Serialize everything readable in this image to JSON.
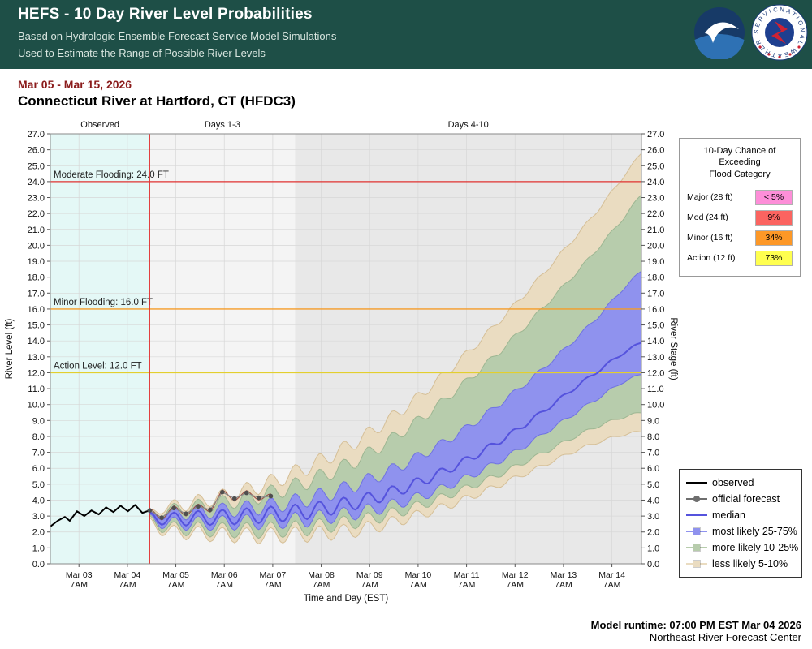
{
  "header": {
    "title": "HEFS - 10 Day River Level Probabilities",
    "subtitle1": "Based on Hydrologic Ensemble Forecast Service Model Simulations",
    "subtitle2": "Used to Estimate the Range of Possible River Levels",
    "nws_ring_text": "NATIONAL WEATHER SERVICE"
  },
  "page": {
    "date_range": "Mar 05 - Mar 15, 2026",
    "station_title": "Connecticut River at Hartford, CT (HFDC3)"
  },
  "flood_table": {
    "title": "10-Day Chance of\nExceeding\nFlood Category",
    "rows": [
      {
        "label": "Major (28 ft)",
        "value": "< 5%",
        "color": "#fd8ed8"
      },
      {
        "label": "Mod (24 ft)",
        "value": "9%",
        "color": "#fb6460"
      },
      {
        "label": "Minor (16 ft)",
        "value": "34%",
        "color": "#fd9827"
      },
      {
        "label": "Action (12 ft)",
        "value": "73%",
        "color": "#ffff4f"
      }
    ]
  },
  "legend": {
    "items": [
      {
        "label": "observed",
        "swatch": "line",
        "color": "#000000"
      },
      {
        "label": "official forecast",
        "swatch": "line-dot",
        "color": "#6e6e6e"
      },
      {
        "label": "median",
        "swatch": "line",
        "color": "#5553dd"
      },
      {
        "label": "most likely 25-75%",
        "swatch": "band",
        "color": "#8f92ee"
      },
      {
        "label": "more likely 10-25%",
        "swatch": "band",
        "color": "#b7ccac"
      },
      {
        "label": "less likely 5-10%",
        "swatch": "band",
        "color": "#eadcc1"
      }
    ]
  },
  "footer": {
    "runtime": "Model runtime: 07:00 PM EST Mar 04 2026",
    "center": "Northeast River Forecast Center"
  },
  "chart_data": {
    "type": "area",
    "xlabel": "Time and Day (EST)",
    "ylabel_left": "River Level (ft)",
    "ylabel_right": "River Stage (ft)",
    "ylim": [
      0.0,
      27.0
    ],
    "ytick_step": 1.0,
    "xlim_days": [
      -0.3,
      11.9
    ],
    "grid": true,
    "xticks": [
      {
        "t": 0.29,
        "line1": "Mar 03",
        "line2": "7AM"
      },
      {
        "t": 1.29,
        "line1": "Mar 04",
        "line2": "7AM"
      },
      {
        "t": 2.29,
        "line1": "Mar 05",
        "line2": "7AM"
      },
      {
        "t": 3.29,
        "line1": "Mar 06",
        "line2": "7AM"
      },
      {
        "t": 4.29,
        "line1": "Mar 07",
        "line2": "7AM"
      },
      {
        "t": 5.29,
        "line1": "Mar 08",
        "line2": "7AM"
      },
      {
        "t": 6.29,
        "line1": "Mar 09",
        "line2": "7AM"
      },
      {
        "t": 7.29,
        "line1": "Mar 10",
        "line2": "7AM"
      },
      {
        "t": 8.29,
        "line1": "Mar 11",
        "line2": "7AM"
      },
      {
        "t": 9.29,
        "line1": "Mar 12",
        "line2": "7AM"
      },
      {
        "t": 10.29,
        "line1": "Mar 13",
        "line2": "7AM"
      },
      {
        "t": 11.29,
        "line1": "Mar 14",
        "line2": "7AM"
      }
    ],
    "regions": [
      {
        "label": "Observed",
        "from": -0.3,
        "to": 1.75,
        "color": "#e4f8f6"
      },
      {
        "label": "Days 1-3",
        "from": 1.75,
        "to": 4.75,
        "color": "#f4f4f4"
      },
      {
        "label": "Days 4-10",
        "from": 4.75,
        "to": 11.9,
        "color": "#e8e8e8"
      }
    ],
    "forecast_start": 1.75,
    "forecast_line_color": "#e03231",
    "flood_lines": [
      {
        "label": "Moderate Flooding: 24.0 FT",
        "value": 24.0,
        "color": "#e03231"
      },
      {
        "label": "Minor Flooding: 16.0 FT",
        "value": 16.0,
        "color": "#f59b27"
      },
      {
        "label": "Action Level: 12.0 FT",
        "value": 12.0,
        "color": "#e3cf2e"
      }
    ],
    "observed": {
      "name": "observed",
      "color": "#000000",
      "t": [
        -0.3,
        -0.15,
        0.0,
        0.1,
        0.25,
        0.4,
        0.55,
        0.7,
        0.85,
        1.0,
        1.15,
        1.3,
        1.45,
        1.6,
        1.75
      ],
      "v": [
        2.35,
        2.7,
        2.95,
        2.7,
        3.3,
        3.0,
        3.35,
        3.1,
        3.55,
        3.25,
        3.65,
        3.3,
        3.7,
        3.2,
        3.35
      ]
    },
    "official_forecast": {
      "name": "official forecast",
      "line_color": "#9b4a42",
      "dot_color": "#4f4f4f",
      "line_wiggle_amp": 0.15,
      "t": [
        1.75,
        2.0,
        2.25,
        2.5,
        2.75,
        3.0,
        3.25,
        3.5,
        3.75,
        4.0,
        4.25
      ],
      "v": [
        3.35,
        2.9,
        3.5,
        3.15,
        3.6,
        3.4,
        4.5,
        4.1,
        4.45,
        4.15,
        4.25
      ]
    },
    "oscillation": {
      "period_days": 0.5,
      "phase_t0": 1.75,
      "amp": {
        "t": [
          1.75,
          2.5,
          4,
          5,
          6,
          7,
          8,
          9,
          10,
          11,
          11.9
        ],
        "a": [
          0.3,
          0.45,
          0.5,
          0.5,
          0.45,
          0.35,
          0.25,
          0.18,
          0.12,
          0.1,
          0.08
        ]
      }
    },
    "keyframe_t": [
      1.75,
      2,
      2.5,
      3,
      3.5,
      4,
      4.5,
      5,
      5.5,
      6,
      6.5,
      7,
      7.5,
      8,
      8.5,
      9,
      9.5,
      10,
      10.5,
      11,
      11.5,
      11.9
    ],
    "median": {
      "name": "median",
      "color": "#5553dd",
      "v": [
        2.95,
        2.8,
        2.85,
        2.9,
        2.95,
        3.05,
        3.15,
        3.3,
        3.55,
        3.85,
        4.25,
        4.75,
        5.35,
        6.05,
        6.85,
        7.75,
        8.75,
        9.85,
        11.0,
        12.1,
        13.2,
        13.9
      ]
    },
    "bands": [
      {
        "name": "less likely 5-10%",
        "fill": "#eadcc1",
        "stroke": "#d5bf97",
        "hi": [
          3.1,
          3.5,
          3.75,
          4.05,
          4.4,
          4.85,
          5.4,
          6.05,
          6.8,
          7.65,
          8.65,
          9.75,
          11.0,
          12.35,
          13.8,
          15.35,
          16.95,
          18.65,
          20.4,
          22.2,
          24.2,
          25.8
        ],
        "lo": [
          2.6,
          2.1,
          1.95,
          1.85,
          1.8,
          1.75,
          1.8,
          1.85,
          1.95,
          2.1,
          2.4,
          2.8,
          3.25,
          3.75,
          4.35,
          5.0,
          5.65,
          6.35,
          7.05,
          7.65,
          8.1,
          8.3
        ]
      },
      {
        "name": "more likely 10-25%",
        "fill": "#b7ccac",
        "stroke": "#9db692",
        "hi": [
          3.05,
          3.3,
          3.5,
          3.7,
          3.95,
          4.25,
          4.65,
          5.15,
          5.75,
          6.45,
          7.35,
          8.35,
          9.45,
          10.7,
          12.0,
          13.4,
          14.9,
          16.5,
          18.1,
          19.8,
          21.6,
          23.2
        ],
        "lo": [
          2.75,
          2.3,
          2.2,
          2.15,
          2.1,
          2.1,
          2.15,
          2.25,
          2.45,
          2.65,
          2.95,
          3.35,
          3.85,
          4.4,
          5.0,
          5.65,
          6.4,
          7.15,
          7.95,
          8.65,
          9.2,
          9.5
        ]
      },
      {
        "name": "most likely 25-75%",
        "fill": "#8f92ee",
        "stroke": "#6f72e2",
        "hi": [
          3.0,
          3.1,
          3.2,
          3.3,
          3.4,
          3.55,
          3.75,
          4.05,
          4.45,
          4.95,
          5.55,
          6.25,
          7.05,
          7.95,
          8.95,
          10.1,
          11.3,
          12.6,
          14.0,
          15.5,
          17.2,
          18.4
        ],
        "lo": [
          2.85,
          2.55,
          2.55,
          2.55,
          2.6,
          2.65,
          2.7,
          2.8,
          3.0,
          3.2,
          3.5,
          3.9,
          4.4,
          5.0,
          5.7,
          6.5,
          7.4,
          8.4,
          9.4,
          10.4,
          11.4,
          11.9
        ]
      }
    ]
  }
}
